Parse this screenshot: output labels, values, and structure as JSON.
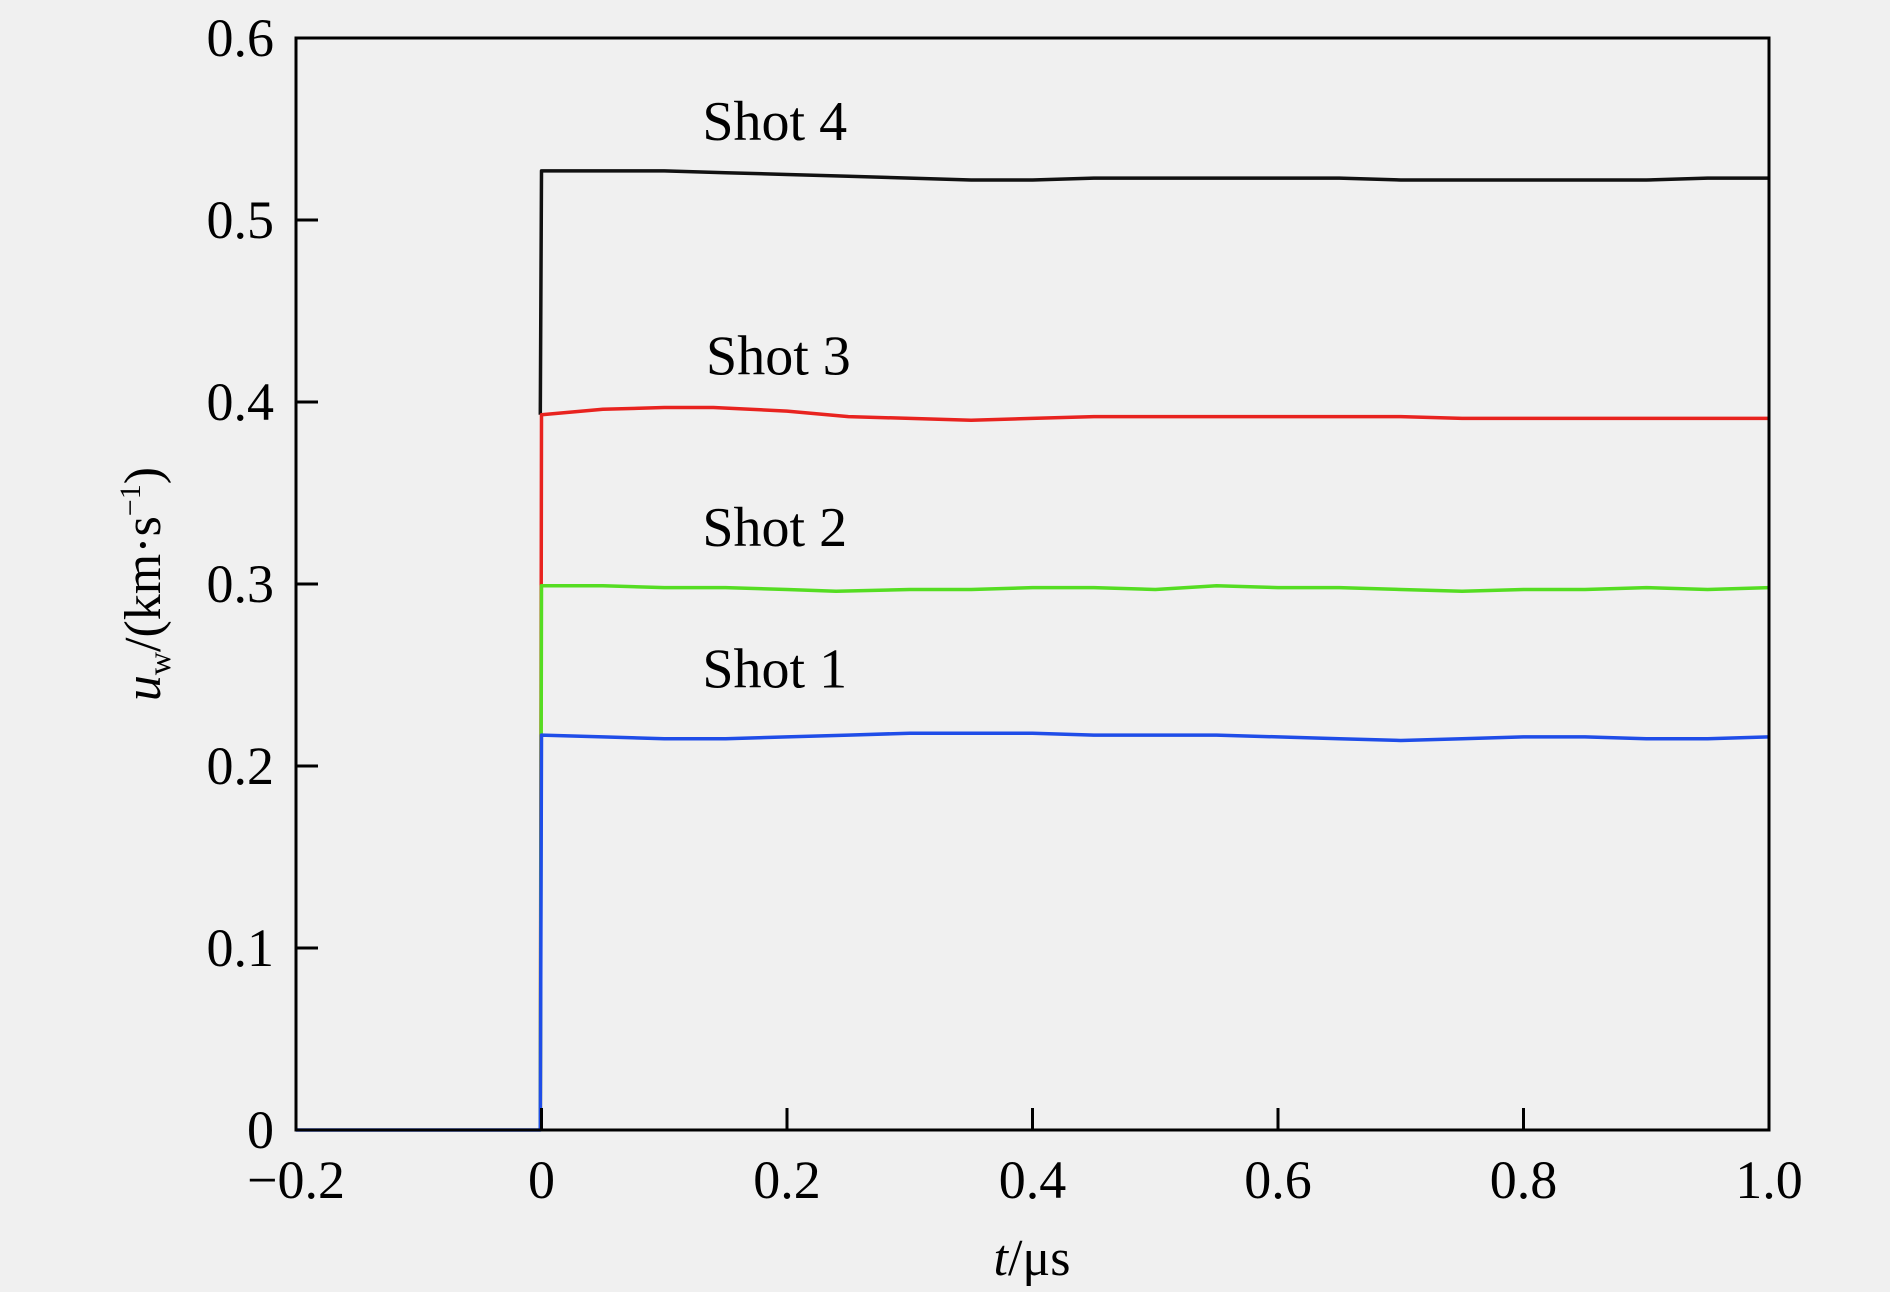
{
  "chart_data": {
    "type": "line",
    "title": "",
    "xlabel": {
      "italic": "t",
      "rest": "/μs"
    },
    "ylabel": {
      "italic": "u",
      "sub": "w",
      "unit_pre": "/(km·s",
      "unit_sup": "−1",
      "unit_post": ")"
    },
    "xlim": [
      -0.2,
      1.0
    ],
    "ylim": [
      0,
      0.6
    ],
    "xticks": [
      -0.2,
      0,
      0.2,
      0.4,
      0.6,
      0.8,
      1.0
    ],
    "xtick_labels": [
      "−0.2",
      "0",
      "0.2",
      "0.4",
      "0.6",
      "0.8",
      "1.0"
    ],
    "yticks": [
      0,
      0.1,
      0.2,
      0.3,
      0.4,
      0.5,
      0.6
    ],
    "ytick_labels": [
      "0",
      "0.1",
      "0.2",
      "0.3",
      "0.4",
      "0.5",
      "0.6"
    ],
    "grid": false,
    "series": [
      {
        "name": "Shot 1",
        "color": "#1f4de8",
        "label_at": [
          0.19,
          0.243
        ],
        "points": [
          [
            -0.2,
            0
          ],
          [
            -0.001,
            0
          ],
          [
            0.0,
            0.217
          ],
          [
            0.05,
            0.216
          ],
          [
            0.1,
            0.215
          ],
          [
            0.15,
            0.215
          ],
          [
            0.2,
            0.216
          ],
          [
            0.25,
            0.217
          ],
          [
            0.3,
            0.218
          ],
          [
            0.35,
            0.218
          ],
          [
            0.4,
            0.218
          ],
          [
            0.45,
            0.217
          ],
          [
            0.5,
            0.217
          ],
          [
            0.55,
            0.217
          ],
          [
            0.6,
            0.216
          ],
          [
            0.65,
            0.215
          ],
          [
            0.7,
            0.214
          ],
          [
            0.75,
            0.215
          ],
          [
            0.8,
            0.216
          ],
          [
            0.85,
            0.216
          ],
          [
            0.9,
            0.215
          ],
          [
            0.95,
            0.215
          ],
          [
            1.0,
            0.216
          ]
        ]
      },
      {
        "name": "Shot 2",
        "color": "#55dd22",
        "label_at": [
          0.19,
          0.321
        ],
        "points": [
          [
            -0.001,
            0
          ],
          [
            0.0,
            0.299
          ],
          [
            0.05,
            0.299
          ],
          [
            0.1,
            0.298
          ],
          [
            0.15,
            0.298
          ],
          [
            0.2,
            0.297
          ],
          [
            0.24,
            0.296
          ],
          [
            0.3,
            0.297
          ],
          [
            0.35,
            0.297
          ],
          [
            0.4,
            0.298
          ],
          [
            0.45,
            0.298
          ],
          [
            0.5,
            0.297
          ],
          [
            0.55,
            0.299
          ],
          [
            0.6,
            0.298
          ],
          [
            0.65,
            0.298
          ],
          [
            0.7,
            0.297
          ],
          [
            0.75,
            0.296
          ],
          [
            0.8,
            0.297
          ],
          [
            0.85,
            0.297
          ],
          [
            0.9,
            0.298
          ],
          [
            0.95,
            0.297
          ],
          [
            1.0,
            0.298
          ]
        ]
      },
      {
        "name": "Shot 3",
        "color": "#e8231f",
        "label_at": [
          0.193,
          0.415
        ],
        "points": [
          [
            -0.001,
            0
          ],
          [
            0.0,
            0.393
          ],
          [
            0.05,
            0.396
          ],
          [
            0.1,
            0.397
          ],
          [
            0.14,
            0.397
          ],
          [
            0.2,
            0.395
          ],
          [
            0.25,
            0.392
          ],
          [
            0.3,
            0.391
          ],
          [
            0.35,
            0.39
          ],
          [
            0.4,
            0.391
          ],
          [
            0.45,
            0.392
          ],
          [
            0.5,
            0.392
          ],
          [
            0.55,
            0.392
          ],
          [
            0.6,
            0.392
          ],
          [
            0.65,
            0.392
          ],
          [
            0.7,
            0.392
          ],
          [
            0.75,
            0.391
          ],
          [
            0.8,
            0.391
          ],
          [
            0.85,
            0.391
          ],
          [
            0.9,
            0.391
          ],
          [
            0.95,
            0.391
          ],
          [
            1.0,
            0.391
          ]
        ]
      },
      {
        "name": "Shot 4",
        "color": "#111111",
        "label_at": [
          0.19,
          0.544
        ],
        "points": [
          [
            -0.001,
            0.393
          ],
          [
            0.0,
            0.527
          ],
          [
            0.05,
            0.527
          ],
          [
            0.1,
            0.527
          ],
          [
            0.15,
            0.526
          ],
          [
            0.2,
            0.525
          ],
          [
            0.25,
            0.524
          ],
          [
            0.3,
            0.523
          ],
          [
            0.35,
            0.522
          ],
          [
            0.4,
            0.522
          ],
          [
            0.45,
            0.523
          ],
          [
            0.5,
            0.523
          ],
          [
            0.55,
            0.523
          ],
          [
            0.6,
            0.523
          ],
          [
            0.65,
            0.523
          ],
          [
            0.7,
            0.522
          ],
          [
            0.75,
            0.522
          ],
          [
            0.8,
            0.522
          ],
          [
            0.85,
            0.522
          ],
          [
            0.9,
            0.522
          ],
          [
            0.95,
            0.523
          ],
          [
            1.0,
            0.523
          ]
        ]
      }
    ]
  }
}
